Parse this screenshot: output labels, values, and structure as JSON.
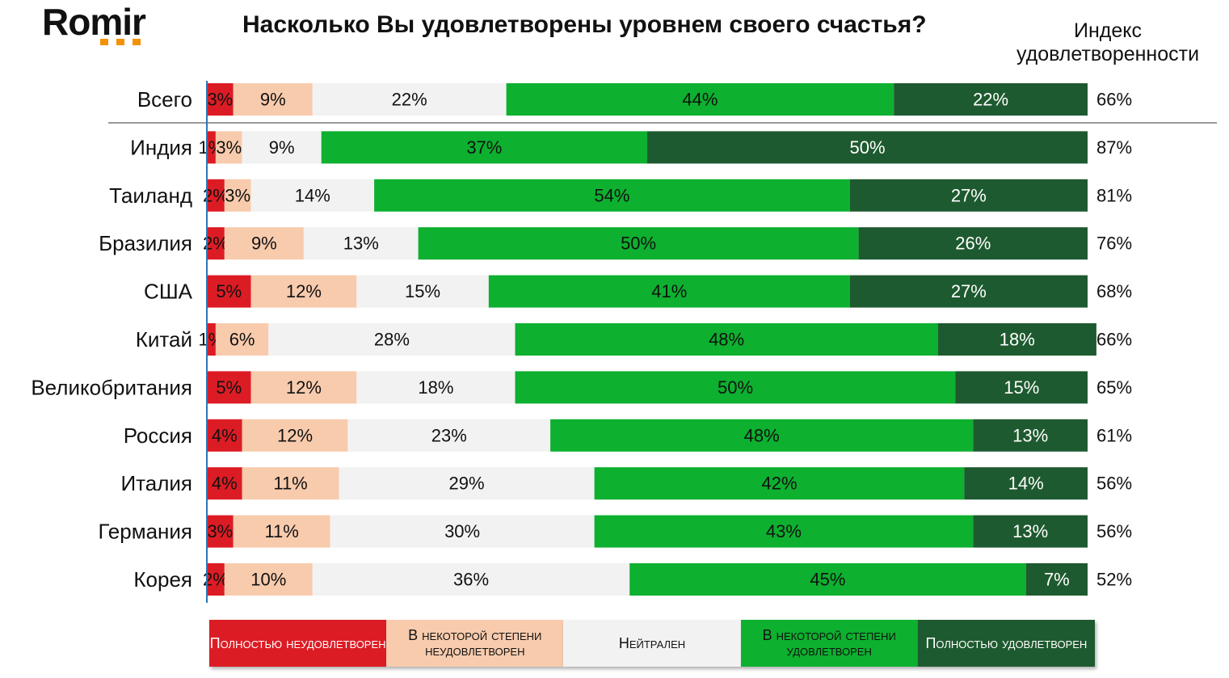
{
  "logo": "Romir",
  "chart_data": {
    "type": "stacked-bar",
    "title": "Насколько Вы удовлетворены уровнем своего счастья?",
    "categories": [
      "Всего",
      "Индия",
      "Таиланд",
      "Бразилия",
      "США",
      "Китай",
      "Великобритания",
      "Россия",
      "Италия",
      "Германия",
      "Корея"
    ],
    "xlim": [
      0,
      100
    ],
    "series": [
      {
        "name": "Полностью неудовлетворен",
        "color": "#dc1c24",
        "values": [
          3,
          1,
          2,
          2,
          5,
          1,
          5,
          4,
          4,
          3,
          2
        ],
        "value_labels": [
          "3%",
          "1%",
          "2%",
          "2%",
          "5%",
          "1%",
          "5%",
          "4%",
          "4%",
          "3%",
          "2%"
        ]
      },
      {
        "name": "В некоторой степени неудовлетворен",
        "color": "#f8cbad",
        "values": [
          9,
          3,
          3,
          9,
          12,
          6,
          12,
          12,
          11,
          11,
          10
        ],
        "value_labels": [
          "9%",
          "3%",
          "3%",
          "9%",
          "12%",
          "6%",
          "12%",
          "12%",
          "11%",
          "11%",
          "10%"
        ]
      },
      {
        "name": "Нейтрален",
        "color": "#f2f2f2",
        "values": [
          22,
          9,
          14,
          13,
          15,
          28,
          18,
          23,
          29,
          30,
          36
        ],
        "value_labels": [
          "22%",
          "9%",
          "14%",
          "13%",
          "15%",
          "28%",
          "18%",
          "23%",
          "29%",
          "30%",
          "36%"
        ]
      },
      {
        "name": "В некоторой степени удовлетворен",
        "color": "#0db02f",
        "values": [
          44,
          37,
          54,
          50,
          41,
          48,
          50,
          48,
          42,
          43,
          45
        ],
        "value_labels": [
          "44%",
          "37%",
          "54%",
          "50%",
          "41%",
          "48%",
          "50%",
          "48%",
          "42%",
          "43%",
          "45%"
        ]
      },
      {
        "name": "Полностью удовлетворен",
        "color": "#1e5a2f",
        "values": [
          22,
          50,
          27,
          26,
          27,
          18,
          15,
          13,
          14,
          13,
          7
        ],
        "value_labels": [
          "22%",
          "50%",
          "27%",
          "26%",
          "27%",
          "18%",
          "15%",
          "13%",
          "14%",
          "13%",
          "7%"
        ]
      }
    ],
    "index": {
      "title": "Индекс удовлетворенности",
      "values": [
        66,
        87,
        81,
        76,
        68,
        66,
        65,
        61,
        56,
        56,
        52
      ],
      "value_labels": [
        "66%",
        "87%",
        "81%",
        "76%",
        "68%",
        "66%",
        "65%",
        "61%",
        "56%",
        "56%",
        "52%"
      ]
    }
  }
}
